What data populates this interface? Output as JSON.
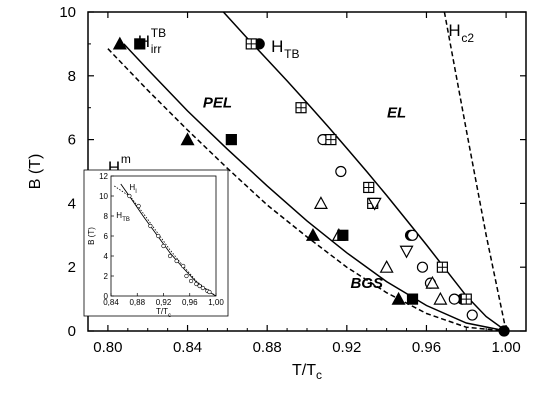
{
  "chart_data": {
    "type": "scatter",
    "xlabel": "T/T",
    "xlabel_sub": "c",
    "ylabel": "B (T)",
    "xlim": [
      0.79,
      1.01
    ],
    "ylim": [
      0,
      10
    ],
    "xticks": [
      "0.80",
      "0.84",
      "0.88",
      "0.92",
      "0.96",
      "1.00"
    ],
    "yticks": [
      "0",
      "2",
      "4",
      "6",
      "8",
      "10"
    ],
    "grid": false,
    "regions": [
      {
        "label": "PEL",
        "x": 0.855,
        "y": 7.0
      },
      {
        "label": "EL",
        "x": 0.945,
        "y": 6.7
      },
      {
        "label": "BGS",
        "x": 0.93,
        "y": 1.35
      }
    ],
    "curve_labels": [
      {
        "main": "H",
        "sub": "irr",
        "sup": "TB",
        "x": 0.815,
        "y": 8.9
      },
      {
        "main": "H",
        "sub": "irr",
        "sup": "m",
        "x": 0.8,
        "y": 4.95
      },
      {
        "main": "H",
        "sub": "TB",
        "sup": "",
        "x": 0.882,
        "y": 8.75
      },
      {
        "main": "H",
        "sub": "c2",
        "sup": "",
        "x": 0.971,
        "y": 9.25
      }
    ],
    "lines": [
      {
        "name": "H_TB",
        "style": "solid",
        "x": [
          0.858,
          0.87,
          0.88,
          0.89,
          0.9,
          0.91,
          0.92,
          0.93,
          0.94,
          0.95,
          0.96,
          0.97,
          0.98,
          0.99,
          1.0
        ],
        "y": [
          10.0,
          9.18,
          8.51,
          7.84,
          7.15,
          6.45,
          5.73,
          5.0,
          4.25,
          3.48,
          2.7,
          1.9,
          1.1,
          0.45,
          0.0
        ]
      },
      {
        "name": "H_irr^TB",
        "style": "solid",
        "x": [
          0.808,
          0.82,
          0.84,
          0.86,
          0.88,
          0.9,
          0.92,
          0.94,
          0.96,
          0.98,
          1.0
        ],
        "y": [
          9.0,
          8.2,
          6.9,
          5.7,
          4.55,
          3.45,
          2.45,
          1.55,
          0.8,
          0.25,
          0.0
        ]
      },
      {
        "name": "H_irr^m",
        "style": "dashed",
        "x": [
          0.8,
          0.82,
          0.84,
          0.86,
          0.88,
          0.9,
          0.92,
          0.94,
          0.96,
          0.98,
          1.0
        ],
        "y": [
          8.85,
          7.55,
          6.3,
          5.1,
          3.95,
          2.95,
          2.0,
          1.2,
          0.55,
          0.12,
          0.0
        ]
      },
      {
        "name": "H_c2",
        "style": "dashed",
        "x": [
          0.969,
          0.98,
          0.99,
          1.0
        ],
        "y": [
          10.0,
          6.3,
          3.0,
          0.0
        ]
      }
    ],
    "series": [
      {
        "marker": "circle-filled",
        "x": [
          0.876,
          0.909,
          0.952,
          0.978,
          0.999
        ],
        "y": [
          9.0,
          6.0,
          3.0,
          1.0,
          0.0
        ]
      },
      {
        "marker": "circle-open",
        "x": [
          0.908,
          0.917,
          0.953,
          0.958,
          0.962,
          0.974,
          0.983
        ],
        "y": [
          6.0,
          5.0,
          3.0,
          2.0,
          1.5,
          1.0,
          0.5
        ]
      },
      {
        "marker": "square-plus",
        "x": [
          0.872,
          0.897,
          0.912,
          0.931,
          0.933,
          0.968,
          0.98
        ],
        "y": [
          9.0,
          7.0,
          6.0,
          4.5,
          4.0,
          2.0,
          1.0
        ]
      },
      {
        "marker": "triangle-down-open",
        "x": [
          0.934,
          0.95
        ],
        "y": [
          4.0,
          2.5
        ]
      },
      {
        "marker": "triangle-up-open",
        "x": [
          0.907,
          0.916,
          0.94,
          0.963,
          0.967
        ],
        "y": [
          4.0,
          3.0,
          2.0,
          1.5,
          1.0
        ]
      },
      {
        "marker": "triangle-up-filled",
        "x": [
          0.806,
          0.84,
          0.903,
          0.946
        ],
        "y": [
          9.0,
          6.0,
          3.0,
          1.0
        ]
      },
      {
        "marker": "square-filled",
        "x": [
          0.816,
          0.862,
          0.918,
          0.953
        ],
        "y": [
          9.0,
          6.0,
          3.0,
          1.0
        ]
      }
    ],
    "inset": {
      "xlabel": "T/T",
      "xlabel_sub": "c",
      "ylabel": "B (T)",
      "xlim": [
        0.84,
        1.0
      ],
      "ylim": [
        0,
        12
      ],
      "xticks": [
        "0,84",
        "0,88",
        "0,92",
        "0,96",
        "1,00"
      ],
      "yticks": [
        "0",
        "2",
        "4",
        "6",
        "8",
        "10",
        "12"
      ],
      "labels": [
        {
          "main": "H",
          "sub": "l",
          "x": 0.868,
          "y": 10.6
        },
        {
          "main": "H",
          "sub": "TB",
          "x": 0.848,
          "y": 7.8
        }
      ],
      "line": {
        "x": [
          0.855,
          0.87,
          0.89,
          0.91,
          0.93,
          0.95,
          0.97,
          0.99,
          1.0
        ],
        "y": [
          11.2,
          9.8,
          7.9,
          6.1,
          4.3,
          2.8,
          1.4,
          0.4,
          0.0
        ]
      },
      "dotted": {
        "x": [
          0.845,
          0.87,
          0.89,
          0.91,
          0.93,
          0.95,
          0.97,
          0.99,
          1.0
        ],
        "y": [
          11.0,
          9.9,
          8.2,
          6.4,
          4.6,
          3.0,
          1.5,
          0.45,
          0.0
        ]
      },
      "points": {
        "x": [
          0.868,
          0.882,
          0.9,
          0.912,
          0.92,
          0.93,
          0.94,
          0.95,
          0.955,
          0.962,
          0.97,
          0.975,
          0.98,
          0.987,
          0.99
        ],
        "y": [
          10.0,
          9.0,
          7.0,
          6.0,
          5.0,
          4.0,
          3.5,
          3.0,
          2.0,
          1.5,
          1.2,
          1.0,
          0.8,
          0.5,
          0.4
        ]
      }
    }
  }
}
